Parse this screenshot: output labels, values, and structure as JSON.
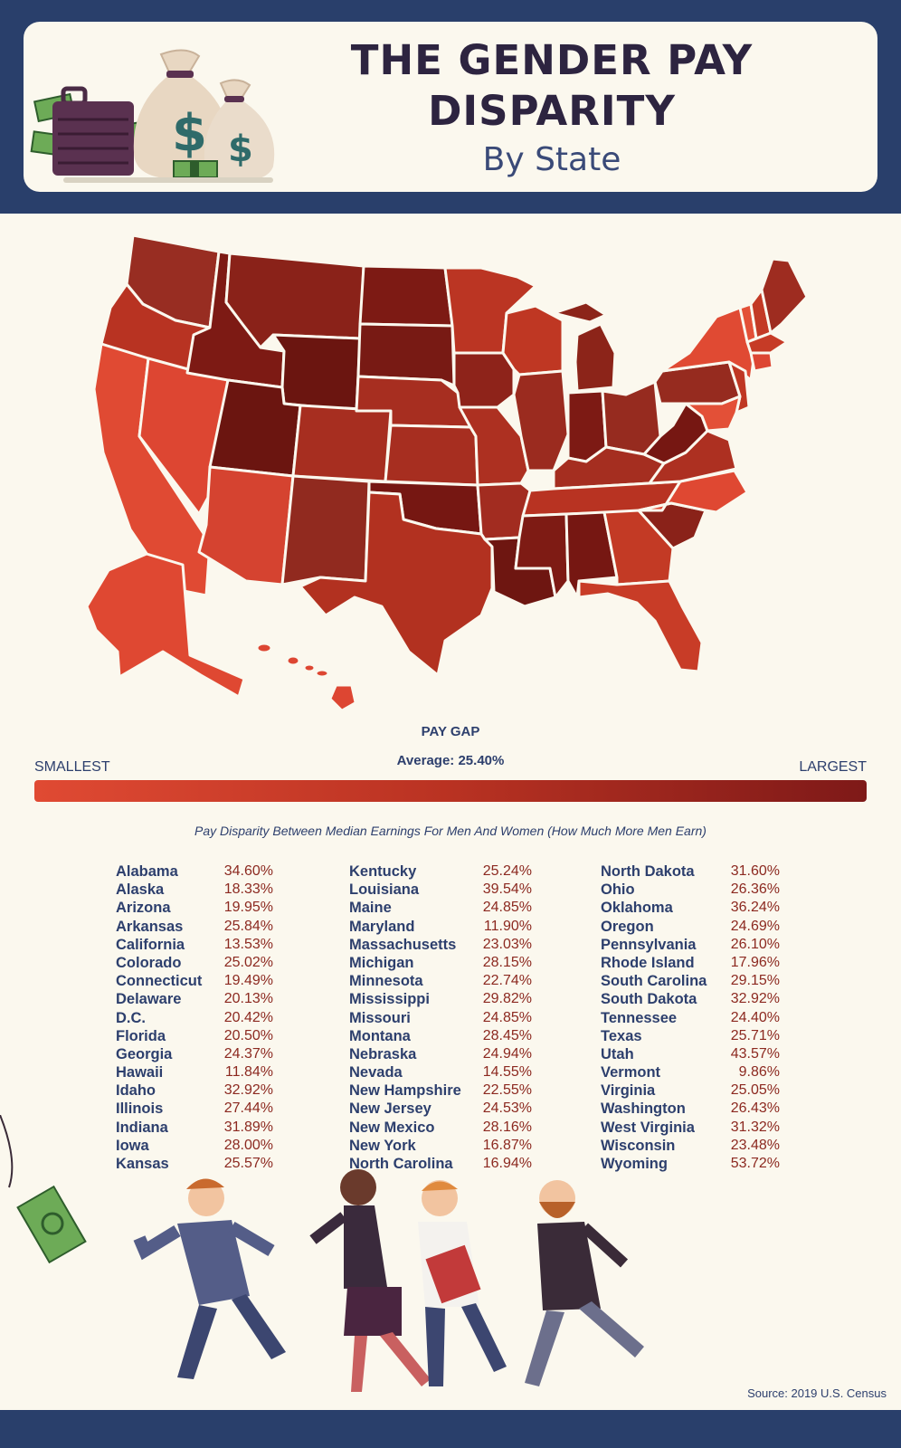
{
  "header": {
    "title_line1": "THE GENDER PAY",
    "title_line2": "DISPARITY",
    "subtitle": "By State"
  },
  "legend": {
    "title": "PAY GAP",
    "average": "Average: 25.40%",
    "smallest": "SMALLEST",
    "largest": "LARGEST",
    "color_min": "#e04a33",
    "color_mid": "#b93222",
    "color_max": "#7e1918"
  },
  "table_caption": "Pay Disparity Between Median Earnings For Men And Women (How Much More Men Earn)",
  "source": "Source: 2019 U.S. Census",
  "chart_data": {
    "type": "table",
    "columns": [
      [
        {
          "state": "Alabama",
          "gap": "34.60%"
        },
        {
          "state": "Alaska",
          "gap": "18.33%"
        },
        {
          "state": "Arizona",
          "gap": "19.95%"
        },
        {
          "state": "Arkansas",
          "gap": "25.84%"
        },
        {
          "state": "California",
          "gap": "13.53%"
        },
        {
          "state": "Colorado",
          "gap": "25.02%"
        },
        {
          "state": "Connecticut",
          "gap": "19.49%"
        },
        {
          "state": "Delaware",
          "gap": "20.13%"
        },
        {
          "state": "D.C.",
          "gap": "20.42%"
        },
        {
          "state": "Florida",
          "gap": "20.50%"
        },
        {
          "state": "Georgia",
          "gap": "24.37%"
        },
        {
          "state": "Hawaii",
          "gap": "11.84%"
        },
        {
          "state": "Idaho",
          "gap": "32.92%"
        },
        {
          "state": "Illinois",
          "gap": "27.44%"
        },
        {
          "state": "Indiana",
          "gap": "31.89%"
        },
        {
          "state": "Iowa",
          "gap": "28.00%"
        },
        {
          "state": "Kansas",
          "gap": "25.57%"
        }
      ],
      [
        {
          "state": "Kentucky",
          "gap": "25.24%"
        },
        {
          "state": "Louisiana",
          "gap": "39.54%"
        },
        {
          "state": "Maine",
          "gap": "24.85%"
        },
        {
          "state": "Maryland",
          "gap": "11.90%"
        },
        {
          "state": "Massachusetts",
          "gap": "23.03%"
        },
        {
          "state": "Michigan",
          "gap": "28.15%"
        },
        {
          "state": "Minnesota",
          "gap": "22.74%"
        },
        {
          "state": "Mississippi",
          "gap": "29.82%"
        },
        {
          "state": "Missouri",
          "gap": "24.85%"
        },
        {
          "state": "Montana",
          "gap": "28.45%"
        },
        {
          "state": "Nebraska",
          "gap": "24.94%"
        },
        {
          "state": "Nevada",
          "gap": "14.55%"
        },
        {
          "state": "New Hampshire",
          "gap": "22.55%"
        },
        {
          "state": "New Jersey",
          "gap": "24.53%"
        },
        {
          "state": "New Mexico",
          "gap": "28.16%"
        },
        {
          "state": "New York",
          "gap": "16.87%"
        },
        {
          "state": "North Carolina",
          "gap": "16.94%"
        }
      ],
      [
        {
          "state": "North Dakota",
          "gap": "31.60%"
        },
        {
          "state": "Ohio",
          "gap": "26.36%"
        },
        {
          "state": "Oklahoma",
          "gap": "36.24%"
        },
        {
          "state": "Oregon",
          "gap": "24.69%"
        },
        {
          "state": "Pennsylvania",
          "gap": "26.10%"
        },
        {
          "state": "Rhode Island",
          "gap": "17.96%"
        },
        {
          "state": "South Carolina",
          "gap": "29.15%"
        },
        {
          "state": "South Dakota",
          "gap": "32.92%"
        },
        {
          "state": "Tennessee",
          "gap": "24.40%"
        },
        {
          "state": "Texas",
          "gap": "25.71%"
        },
        {
          "state": "Utah",
          "gap": "43.57%"
        },
        {
          "state": "Vermont",
          "gap": "9.86%"
        },
        {
          "state": "Virginia",
          "gap": "25.05%"
        },
        {
          "state": "Washington",
          "gap": "26.43%"
        },
        {
          "state": "West Virginia",
          "gap": "31.32%"
        },
        {
          "state": "Wisconsin",
          "gap": "23.48%"
        },
        {
          "state": "Wyoming",
          "gap": "53.72%"
        }
      ]
    ]
  }
}
